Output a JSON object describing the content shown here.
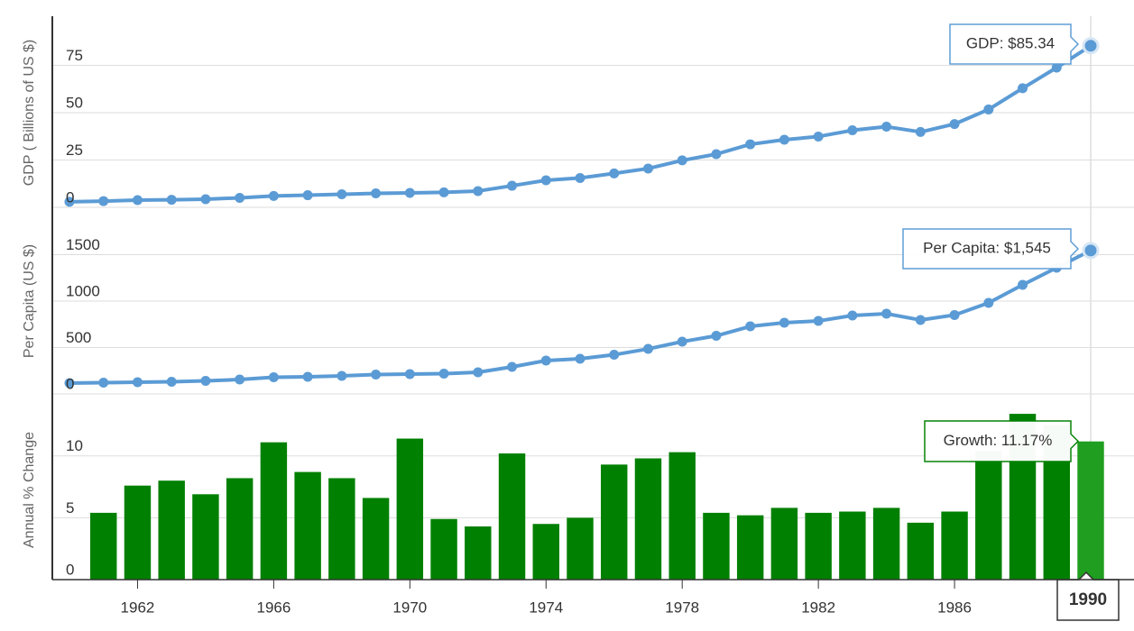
{
  "chart_data": [
    {
      "type": "line",
      "y_label": "GDP ( Billions of US $)",
      "x": [
        1960,
        1961,
        1962,
        1963,
        1964,
        1965,
        1966,
        1967,
        1968,
        1969,
        1970,
        1971,
        1972,
        1973,
        1974,
        1975,
        1976,
        1977,
        1978,
        1979,
        1980,
        1981,
        1982,
        1983,
        1984,
        1985,
        1986,
        1987,
        1988,
        1989,
        1990
      ],
      "values": [
        2.9,
        3.3,
        3.8,
        4.0,
        4.3,
        5.0,
        6.0,
        6.4,
        6.9,
        7.4,
        7.6,
        7.9,
        8.6,
        11.4,
        14.3,
        15.5,
        17.9,
        20.5,
        24.8,
        28.1,
        33.3,
        35.7,
        37.4,
        40.7,
        42.6,
        39.8,
        44.0,
        51.7,
        62.9,
        73.8,
        85.34
      ],
      "color": "#5b9bd5",
      "xlim": [
        1960,
        1990
      ],
      "ylim": [
        0,
        100
      ],
      "yticks": [
        0,
        25,
        50,
        75
      ],
      "grid": true,
      "tooltip": "GDP: $85.34"
    },
    {
      "type": "line",
      "y_label": "Per Capita (US $)",
      "x": [
        1960,
        1961,
        1962,
        1963,
        1964,
        1965,
        1966,
        1967,
        1968,
        1969,
        1970,
        1971,
        1972,
        1973,
        1974,
        1975,
        1976,
        1977,
        1978,
        1979,
        1980,
        1981,
        1982,
        1983,
        1984,
        1985,
        1986,
        1987,
        1988,
        1989,
        1990
      ],
      "values": [
        117,
        121,
        126,
        131,
        141,
        155,
        180,
        184,
        194,
        209,
        214,
        218,
        233,
        291,
        359,
        379,
        422,
        485,
        563,
        626,
        728,
        767,
        786,
        845,
        864,
        796,
        850,
        981,
        1175,
        1359,
        1545
      ],
      "color": "#5b9bd5",
      "xlim": [
        1960,
        1990
      ],
      "ylim": [
        0,
        2000
      ],
      "yticks": [
        0,
        500,
        1000,
        1500
      ],
      "grid": true,
      "tooltip": "Per Capita: $1,545"
    },
    {
      "type": "bar",
      "y_label": "Annual % Change",
      "x": [
        1960,
        1961,
        1962,
        1963,
        1964,
        1965,
        1966,
        1967,
        1968,
        1969,
        1970,
        1971,
        1972,
        1973,
        1974,
        1975,
        1976,
        1977,
        1978,
        1979,
        1980,
        1981,
        1982,
        1983,
        1984,
        1985,
        1986,
        1987,
        1988,
        1989,
        1990
      ],
      "values": [
        null,
        5.4,
        7.6,
        8.0,
        6.9,
        8.2,
        11.1,
        8.7,
        8.2,
        6.6,
        11.4,
        4.9,
        4.3,
        10.2,
        4.5,
        5.0,
        9.3,
        9.8,
        10.3,
        5.4,
        5.2,
        5.8,
        5.4,
        5.5,
        5.8,
        4.6,
        5.5,
        10.4,
        13.4,
        12.5,
        11.17
      ],
      "color": "#008000",
      "highlight_color": "#1f9e1f",
      "xlim": [
        1960,
        1990
      ],
      "ylim": [
        0,
        14.5
      ],
      "yticks": [
        0,
        5,
        10
      ],
      "xticks": [
        1962,
        1966,
        1970,
        1974,
        1978,
        1982,
        1986
      ],
      "grid": true,
      "tooltip": "Growth: 11.17%",
      "highlight_label": "1990"
    }
  ]
}
